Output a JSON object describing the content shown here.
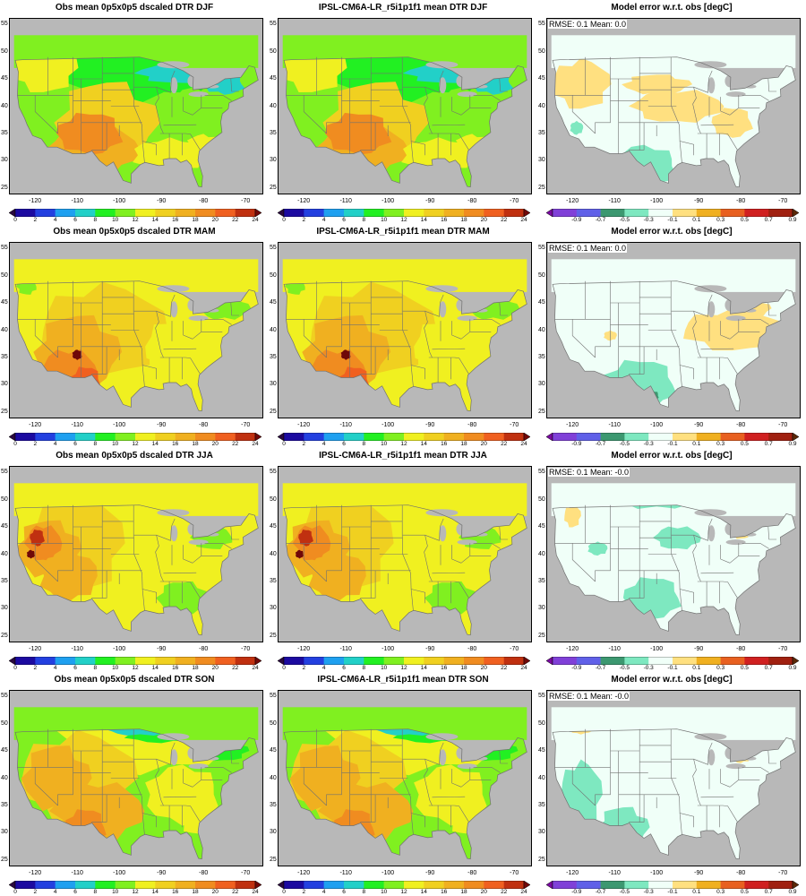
{
  "layout": {
    "rows": 4,
    "cols": 3
  },
  "panels": [
    {
      "title": "Obs mean 0p5x0p5 dscaled DTR DJF",
      "kind": "mean",
      "pattern": "DJF",
      "stats": ""
    },
    {
      "title": "IPSL-CM6A-LR_r5i1p1f1 mean DTR DJF",
      "kind": "mean",
      "pattern": "DJF",
      "stats": ""
    },
    {
      "title": "Model error w.r.t. obs [degC]",
      "kind": "error",
      "pattern": "DJF",
      "stats": "RMSE: 0.1   Mean: 0.0"
    },
    {
      "title": "Obs mean 0p5x0p5 dscaled DTR MAM",
      "kind": "mean",
      "pattern": "MAM",
      "stats": ""
    },
    {
      "title": "IPSL-CM6A-LR_r5i1p1f1 mean DTR MAM",
      "kind": "mean",
      "pattern": "MAM",
      "stats": ""
    },
    {
      "title": "Model error w.r.t. obs [degC]",
      "kind": "error",
      "pattern": "MAM",
      "stats": "RMSE: 0.1   Mean: 0.0"
    },
    {
      "title": "Obs mean 0p5x0p5 dscaled DTR JJA",
      "kind": "mean",
      "pattern": "JJA",
      "stats": ""
    },
    {
      "title": "IPSL-CM6A-LR_r5i1p1f1 mean DTR JJA",
      "kind": "mean",
      "pattern": "JJA",
      "stats": ""
    },
    {
      "title": "Model error w.r.t. obs [degC]",
      "kind": "error",
      "pattern": "JJA",
      "stats": "RMSE: 0.1   Mean: -0.0"
    },
    {
      "title": "Obs mean 0p5x0p5 dscaled DTR SON",
      "kind": "mean",
      "pattern": "SON",
      "stats": ""
    },
    {
      "title": "IPSL-CM6A-LR_r5i1p1f1 mean DTR SON",
      "kind": "mean",
      "pattern": "SON",
      "stats": ""
    },
    {
      "title": "Model error w.r.t. obs [degC]",
      "kind": "error",
      "pattern": "SON",
      "stats": "RMSE: 0.1   Mean: -0.0"
    }
  ],
  "axes": {
    "lon_ticks": [
      "-120",
      "-110",
      "-100",
      "-90",
      "-80",
      "-70"
    ],
    "lat_ticks": [
      "55",
      "50",
      "45",
      "40",
      "35",
      "30",
      "25"
    ],
    "lon_range": [
      -126,
      -66
    ],
    "lat_range": [
      24,
      56
    ]
  },
  "colorbars": {
    "mean": {
      "ticks": [
        "0",
        "2",
        "4",
        "6",
        "8",
        "10",
        "12",
        "14",
        "16",
        "18",
        "20",
        "22",
        "24"
      ],
      "colors": [
        "#2a0a3e",
        "#1c0aa0",
        "#2340e0",
        "#1ea0f0",
        "#22d0c8",
        "#22f022",
        "#80f020",
        "#f0f020",
        "#f0d020",
        "#f0b020",
        "#f08c20",
        "#f06020",
        "#c03010",
        "#700808"
      ]
    },
    "error": {
      "ticks": [
        "-0.9",
        "-0.7",
        "-0.5",
        "-0.3",
        "-0.1",
        "0.1",
        "0.3",
        "0.5",
        "0.7",
        "0.9"
      ],
      "colors": [
        "#7a0aa0",
        "#8040d8",
        "#6060e8",
        "#3c9870",
        "#7ee8c0",
        "#f0fff8",
        "#ffe080",
        "#f0b020",
        "#e86020",
        "#d02020",
        "#a02010",
        "#5a2808"
      ]
    }
  },
  "colors": {
    "land_mask": "#b8b8b8",
    "borders": "#707070",
    "frame": "#000000"
  }
}
